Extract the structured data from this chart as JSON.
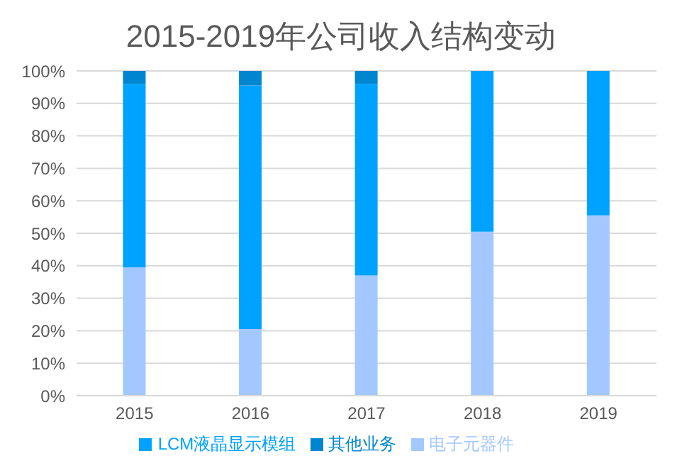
{
  "chart_data": {
    "type": "bar",
    "title": "2015-2019年公司收入结构变动",
    "stacked": true,
    "categories": [
      "2015",
      "2016",
      "2017",
      "2018",
      "2019"
    ],
    "series": [
      {
        "name": "电子元器件",
        "color": "#a3c8ff",
        "values": [
          39.5,
          20.5,
          37,
          50.5,
          55.5
        ]
      },
      {
        "name": "LCM液晶显示模组",
        "color": "#00a2ff",
        "values": [
          56.5,
          75,
          59,
          49.5,
          44.5
        ]
      },
      {
        "name": "其他业务",
        "color": "#0086d0",
        "values": [
          4,
          4.5,
          4,
          0,
          0
        ]
      }
    ],
    "ylim": [
      0,
      100
    ],
    "yticks": [
      {
        "value": 0,
        "label": "0%"
      },
      {
        "value": 10,
        "label": "10%"
      },
      {
        "value": 20,
        "label": "20%"
      },
      {
        "value": 30,
        "label": "30%"
      },
      {
        "value": 40,
        "label": "40%"
      },
      {
        "value": 50,
        "label": "50%"
      },
      {
        "value": 60,
        "label": "60%"
      },
      {
        "value": 70,
        "label": "70%"
      },
      {
        "value": 80,
        "label": "80%"
      },
      {
        "value": 90,
        "label": "90%"
      },
      {
        "value": 100,
        "label": "100%"
      }
    ],
    "grid": "y",
    "legend": "bottom"
  }
}
